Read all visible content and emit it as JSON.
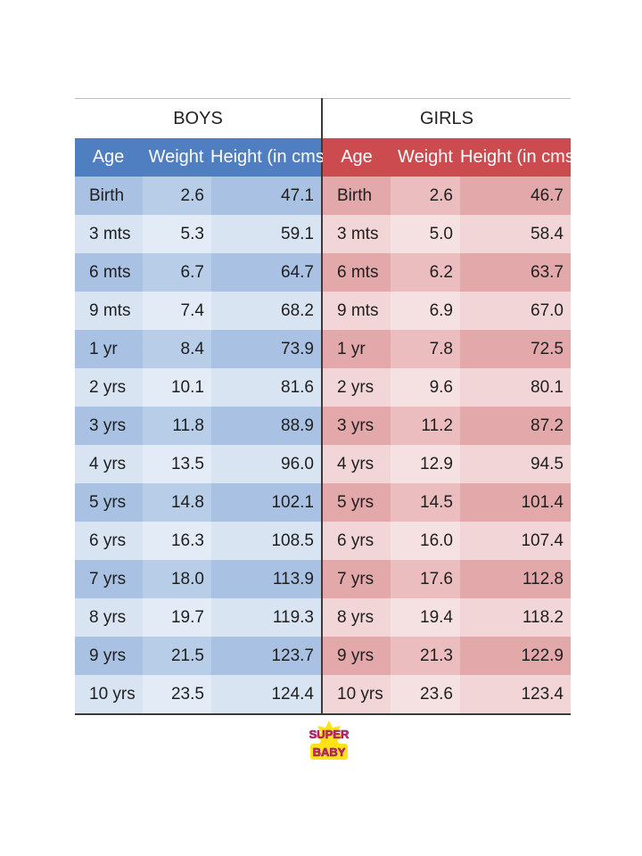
{
  "boys": {
    "title": "BOYS",
    "headers": {
      "age": "Age",
      "weight": "Weight",
      "height": "Height (in cms)"
    },
    "rows": [
      {
        "age": "Birth",
        "weight": "2.6",
        "height": "47.1"
      },
      {
        "age": "3 mts",
        "weight": "5.3",
        "height": "59.1"
      },
      {
        "age": "6 mts",
        "weight": "6.7",
        "height": "64.7"
      },
      {
        "age": "9 mts",
        "weight": "7.4",
        "height": "68.2"
      },
      {
        "age": "1 yr",
        "weight": "8.4",
        "height": "73.9"
      },
      {
        "age": "2 yrs",
        "weight": "10.1",
        "height": "81.6"
      },
      {
        "age": "3 yrs",
        "weight": "11.8",
        "height": "88.9"
      },
      {
        "age": "4 yrs",
        "weight": "13.5",
        "height": "96.0"
      },
      {
        "age": "5 yrs",
        "weight": "14.8",
        "height": "102.1"
      },
      {
        "age": "6 yrs",
        "weight": "16.3",
        "height": "108.5"
      },
      {
        "age": "7 yrs",
        "weight": "18.0",
        "height": "113.9"
      },
      {
        "age": "8 yrs",
        "weight": "19.7",
        "height": "119.3"
      },
      {
        "age": "9 yrs",
        "weight": "21.5",
        "height": "123.7"
      },
      {
        "age": "10 yrs",
        "weight": "23.5",
        "height": "124.4"
      }
    ]
  },
  "girls": {
    "title": "GIRLS",
    "headers": {
      "age": "Age",
      "weight": "Weight",
      "height": "Height (in cms)"
    },
    "rows": [
      {
        "age": "Birth",
        "weight": "2.6",
        "height": "46.7"
      },
      {
        "age": "3 mts",
        "weight": "5.0",
        "height": "58.4"
      },
      {
        "age": "6 mts",
        "weight": "6.2",
        "height": "63.7"
      },
      {
        "age": "9 mts",
        "weight": "6.9",
        "height": "67.0"
      },
      {
        "age": "1 yr",
        "weight": "7.8",
        "height": "72.5"
      },
      {
        "age": "2 yrs",
        "weight": "9.6",
        "height": "80.1"
      },
      {
        "age": "3 yrs",
        "weight": "11.2",
        "height": "87.2"
      },
      {
        "age": "4 yrs",
        "weight": "12.9",
        "height": "94.5"
      },
      {
        "age": "5 yrs",
        "weight": "14.5",
        "height": "101.4"
      },
      {
        "age": "6 yrs",
        "weight": "16.0",
        "height": "107.4"
      },
      {
        "age": "7 yrs",
        "weight": "17.6",
        "height": "112.8"
      },
      {
        "age": "8 yrs",
        "weight": "19.4",
        "height": "118.2"
      },
      {
        "age": "9 yrs",
        "weight": "21.3",
        "height": "122.9"
      },
      {
        "age": "10 yrs",
        "weight": "23.6",
        "height": "123.4"
      }
    ]
  },
  "colors": {
    "boys_header": "#4f7fc1",
    "girls_header": "#cc4b4f"
  },
  "logo": {
    "icon": "superbaby-logo-icon",
    "text_top": "SUPER",
    "text_bottom": "BABY"
  }
}
